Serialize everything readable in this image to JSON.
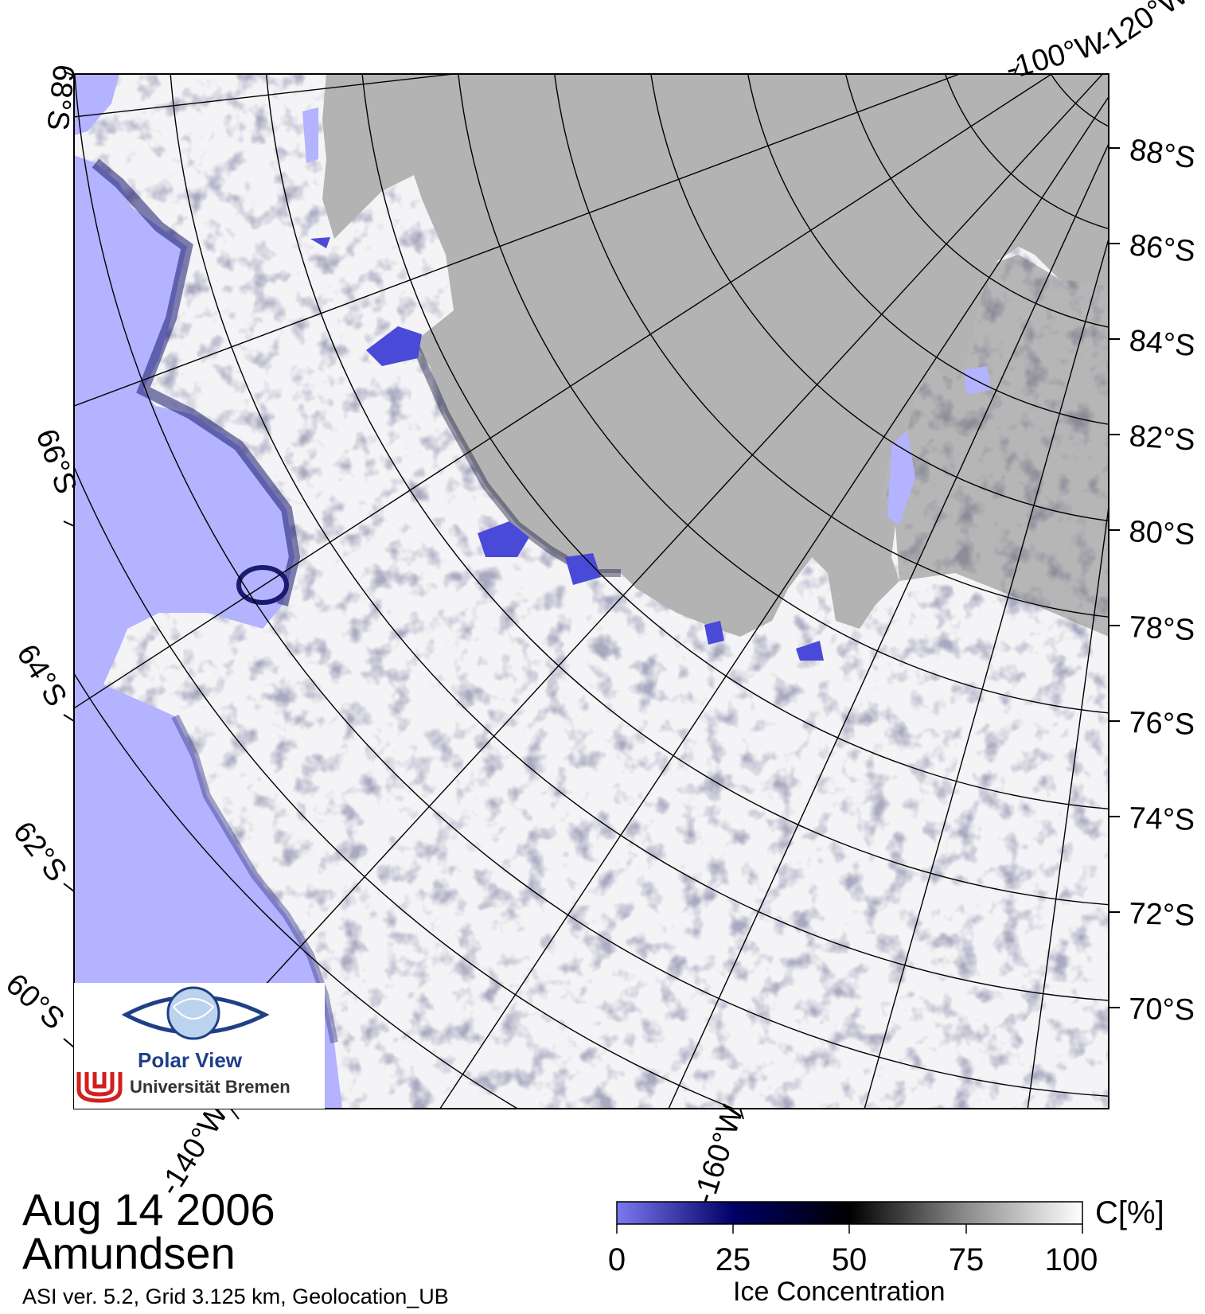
{
  "date": "Aug 14 2006",
  "region": "Amundsen",
  "info": "ASI ver. 5.2,  Grid 3.125 km, Geolocation_UB",
  "logo": {
    "name": "Polar View",
    "institution": "Universität Bremen",
    "icon": "eye-globe-icon",
    "seal": "ub-seal-icon"
  },
  "map": {
    "latitude_labels_right": [
      "88°S",
      "86°S",
      "84°S",
      "82°S",
      "80°S",
      "78°S",
      "76°S",
      "74°S",
      "72°S",
      "70°S"
    ],
    "latitude_labels_left": [
      "68°S",
      "66°S",
      "64°S",
      "62°S",
      "60°S"
    ],
    "longitude_labels": [
      "-100°W",
      "-120°W",
      "-140°W",
      "-160°W"
    ],
    "colors": {
      "land": "#b3b3b3",
      "open_water": "#b3b3ff",
      "ice_full": "#ffffff",
      "grid": "#000000"
    }
  },
  "colorbar": {
    "title": "Ice Concentration",
    "unit": "C[%]",
    "ticks": [
      "0",
      "25",
      "50",
      "75",
      "100"
    ],
    "range": [
      0,
      100
    ],
    "stops": [
      {
        "value": 0,
        "color": "#7a7af0"
      },
      {
        "value": 25,
        "color": "#000066"
      },
      {
        "value": 50,
        "color": "#000000"
      },
      {
        "value": 75,
        "color": "#8c8c8c"
      },
      {
        "value": 100,
        "color": "#ffffff"
      }
    ]
  }
}
